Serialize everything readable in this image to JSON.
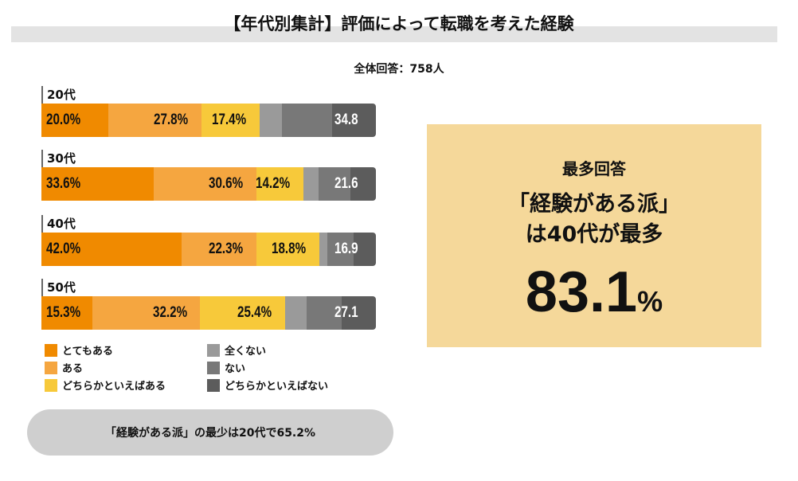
{
  "chart_data": {
    "type": "bar",
    "orientation": "horizontal-stacked",
    "title": "【年代別集計】評価によって転職を考えた経験",
    "subtitle": "全体回答：758人",
    "categories": [
      "20代",
      "30代",
      "40代",
      "50代"
    ],
    "series": [
      {
        "name": "とてもある",
        "color": "#f08a00",
        "values": [
          20.0,
          33.6,
          42.0,
          15.3
        ],
        "labels": [
          "20.0%",
          "33.6%",
          "42.0%",
          "15.3%"
        ]
      },
      {
        "name": "ある",
        "color": "#f5a640",
        "values": [
          27.8,
          30.6,
          22.3,
          32.2
        ],
        "labels": [
          "27.8%",
          "30.6%",
          "22.3%",
          "32.2%"
        ]
      },
      {
        "name": "どちらかといえばある",
        "color": "#f7c93a",
        "values": [
          17.4,
          14.2,
          18.8,
          25.4
        ],
        "labels": [
          "17.4%",
          "14.2%",
          "18.8%",
          "25.4%"
        ]
      },
      {
        "name": "全くない",
        "color": "#9a9a9a",
        "values": [
          6.7,
          4.5,
          2.4,
          6.5
        ]
      },
      {
        "name": "ない",
        "color": "#787878",
        "values": [
          14.9,
          9.6,
          7.9,
          10.3
        ]
      },
      {
        "name": "どちらかといえばない",
        "color": "#5c5c5c",
        "values": [
          13.2,
          7.5,
          6.6,
          10.3
        ]
      }
    ],
    "negative_totals": [
      "34.8",
      "21.6",
      "16.9",
      "27.1"
    ],
    "xlim": [
      0,
      100
    ],
    "legend": "bottom"
  },
  "callout": {
    "heading": "最多回答",
    "line1": "「経験がある派」",
    "line2": "は40代が最多",
    "value": "83.1",
    "unit": "%"
  },
  "note": "「経験がある派」の最少は20代で65.2%"
}
